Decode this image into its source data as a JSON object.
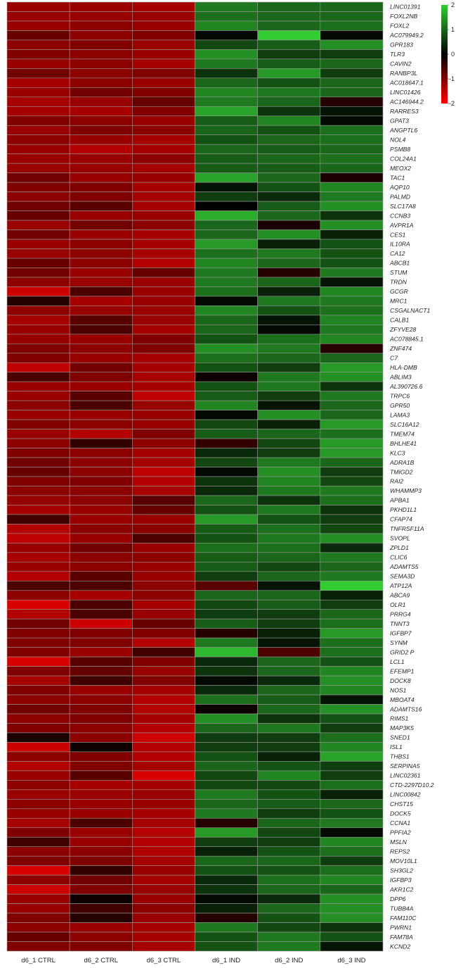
{
  "chart_data": {
    "type": "heatmap",
    "columns": [
      "d6_1 CTRL",
      "d6_2 CTRL",
      "d6_3 CTRL",
      "d6_1 IND",
      "d6_2 IND",
      "d6_3 IND"
    ],
    "rows": [
      "LINC01391",
      "FOXL2NB",
      "FOXL2",
      "AC079949.2",
      "GPR183",
      "TLR3",
      "CAVIN2",
      "RANBP3L",
      "AC018647.1",
      "LINC01426",
      "AC146944.2",
      "RARRES3",
      "GPAT3",
      "ANGPTL6",
      "NOL4",
      "PSMB8",
      "COL24A1",
      "MEOX2",
      "TAC1",
      "AQP10",
      "PALMD",
      "SLC17A8",
      "CCNB3",
      "AVPR1A",
      "CES1",
      "IL10RA",
      "CA12",
      "ABCB1",
      "STUM",
      "TRDN",
      "GCGR",
      "MRC1",
      "CSGALNACT1",
      "CALB1",
      "ZFYVE28",
      "AC078845.1",
      "ZNF474",
      "C7",
      "HLA-DMB",
      "ABLIM3",
      "AL390726.6",
      "TRPC6",
      "GPR50",
      "LAMA3",
      "SLC16A12",
      "TMEM74",
      "BHLHE41",
      "KLC3",
      "ADRA1B",
      "TMIGD2",
      "RAI2",
      "WHAMMP3",
      "APBA1",
      "PKHD1L1",
      "CFAP74",
      "TNFRSF11A",
      "SVOPL",
      "ZPLD1",
      "CLIC6",
      "ADAMTS5",
      "SEMA3D",
      "ATP12A",
      "ABCA9",
      "OLR1",
      "PRRG4",
      "TNNT3",
      "IGFBP7",
      "SYNM",
      "GRID2 P",
      "LCL1",
      "EFEMP1",
      "DOCK8",
      "NOS1",
      "MBOAT4",
      "ADAMTS16",
      "RIMS1",
      "MAP3K5",
      "SNED1",
      "ISL1",
      "THBS1",
      "SERPINA5",
      "LINC02361",
      "CTD-2297D10.2",
      "LINC00842",
      "CHST15",
      "DOCK5",
      "CCNA1",
      "PPFIA2",
      "MSLN",
      "REPS2",
      "MOV10L1",
      "SH3GL2",
      "IGFBP3",
      "AKR1C2",
      "DPP6",
      "TUBB4A",
      "FAM110C",
      "PWRN1",
      "FAM78A",
      "KCND2"
    ],
    "values": [
      [
        -1.2,
        -1.2,
        -1.3,
        1.2,
        1.0,
        1.0
      ],
      [
        -1.2,
        -1.2,
        -1.2,
        1.1,
        1.0,
        1.0
      ],
      [
        -1.2,
        -1.1,
        -1.2,
        1.3,
        1.0,
        1.1
      ],
      [
        -0.8,
        -1.1,
        -1.0,
        0.1,
        2.0,
        0.1
      ],
      [
        -1.1,
        -1.0,
        -1.2,
        0.7,
        0.9,
        1.4
      ],
      [
        -1.0,
        -1.1,
        -1.2,
        1.4,
        0.6,
        0.6
      ],
      [
        -1.2,
        -1.1,
        -1.3,
        1.2,
        0.9,
        1.0
      ],
      [
        -0.9,
        -1.1,
        -1.0,
        0.5,
        1.5,
        0.6
      ],
      [
        -1.3,
        -1.1,
        -1.2,
        1.0,
        0.8,
        1.0
      ],
      [
        -1.2,
        -0.9,
        -1.0,
        1.3,
        1.2,
        1.0
      ],
      [
        -1.3,
        -1.2,
        -0.8,
        1.2,
        1.0,
        -0.3
      ],
      [
        -1.3,
        -1.3,
        -1.0,
        1.6,
        0.5,
        0.2
      ],
      [
        -1.0,
        -1.1,
        -1.2,
        0.9,
        1.3,
        0.1
      ],
      [
        -1.2,
        -1.0,
        -1.1,
        1.0,
        0.8,
        1.1
      ],
      [
        -1.1,
        -1.2,
        -1.3,
        0.8,
        1.0,
        1.1
      ],
      [
        -1.2,
        -1.4,
        -1.3,
        1.0,
        0.9,
        1.0
      ],
      [
        -1.2,
        -1.2,
        -1.1,
        0.9,
        1.0,
        1.1
      ],
      [
        -1.2,
        -1.2,
        -1.3,
        0.9,
        0.9,
        1.0
      ],
      [
        -0.9,
        -1.2,
        -1.2,
        1.6,
        1.0,
        -0.2
      ],
      [
        -1.0,
        -1.0,
        -1.3,
        0.2,
        0.8,
        1.3
      ],
      [
        -1.1,
        -1.0,
        -1.3,
        0.6,
        0.4,
        1.2
      ],
      [
        -0.9,
        -0.7,
        -1.3,
        0.0,
        0.9,
        1.4
      ],
      [
        -0.8,
        -1.2,
        -1.2,
        1.7,
        1.0,
        0.5
      ],
      [
        -1.2,
        -0.9,
        -1.1,
        1.0,
        -0.2,
        1.4
      ],
      [
        -0.9,
        -1.2,
        -1.3,
        1.0,
        1.4,
        0.3
      ],
      [
        -1.2,
        -1.1,
        -1.3,
        1.5,
        0.3,
        0.8
      ],
      [
        -1.2,
        -1.1,
        -1.3,
        1.1,
        1.2,
        0.8
      ],
      [
        -0.8,
        -1.1,
        -1.4,
        1.3,
        1.0,
        0.8
      ],
      [
        -0.9,
        -1.2,
        -0.8,
        1.2,
        -0.3,
        1.2
      ],
      [
        -1.1,
        -1.2,
        -1.2,
        1.2,
        1.0,
        0.2
      ],
      [
        -1.6,
        -0.6,
        -1.2,
        1.1,
        0.3,
        1.3
      ],
      [
        -0.3,
        -1.3,
        -1.2,
        0.1,
        1.2,
        1.2
      ],
      [
        -1.1,
        -1.2,
        -1.2,
        1.3,
        0.8,
        1.1
      ],
      [
        -1.3,
        -0.7,
        -1.2,
        1.0,
        0.2,
        1.3
      ],
      [
        -1.2,
        -0.6,
        -1.3,
        1.0,
        0.1,
        1.2
      ],
      [
        -1.2,
        -1.2,
        -1.0,
        0.8,
        1.1,
        1.3
      ],
      [
        -1.0,
        -1.1,
        -1.0,
        1.4,
        1.2,
        -0.3
      ],
      [
        -1.0,
        -1.2,
        -1.3,
        1.1,
        1.0,
        1.0
      ],
      [
        -1.5,
        -0.9,
        -1.3,
        0.8,
        0.6,
        1.5
      ],
      [
        -0.6,
        -1.0,
        -1.3,
        -0.1,
        1.2,
        1.4
      ],
      [
        -1.2,
        -1.2,
        -1.3,
        0.8,
        1.2,
        0.5
      ],
      [
        -1.2,
        -0.7,
        -1.5,
        0.9,
        0.6,
        1.2
      ],
      [
        -1.1,
        -0.6,
        -1.2,
        1.3,
        0.2,
        1.0
      ],
      [
        -1.2,
        -1.2,
        -1.2,
        0.1,
        1.4,
        1.0
      ],
      [
        -1.0,
        -1.1,
        -1.2,
        0.7,
        0.3,
        1.5
      ],
      [
        -1.2,
        -1.4,
        -1.0,
        0.9,
        1.0,
        1.1
      ],
      [
        -1.1,
        -0.4,
        -1.1,
        -0.4,
        0.7,
        1.5
      ],
      [
        -1.0,
        -1.1,
        -1.3,
        0.4,
        0.6,
        1.5
      ],
      [
        -0.9,
        -1.1,
        -1.3,
        0.7,
        1.2,
        1.0
      ],
      [
        -0.8,
        -1.1,
        -1.5,
        0.1,
        1.4,
        0.6
      ],
      [
        -1.0,
        -1.0,
        -1.4,
        0.5,
        1.3,
        0.7
      ],
      [
        -1.1,
        -1.1,
        -1.3,
        0.4,
        1.2,
        1.2
      ],
      [
        -1.2,
        -1.1,
        -0.7,
        1.0,
        0.5,
        1.1
      ],
      [
        -1.3,
        -1.2,
        -0.8,
        0.8,
        1.2,
        0.5
      ],
      [
        -0.5,
        -1.2,
        -1.2,
        1.5,
        0.8,
        0.6
      ],
      [
        -1.4,
        -1.1,
        -1.1,
        0.9,
        1.1,
        0.7
      ],
      [
        -1.5,
        -1.2,
        -0.6,
        0.8,
        1.2,
        1.4
      ],
      [
        -1.2,
        -0.9,
        -1.2,
        1.1,
        1.1,
        0.4
      ],
      [
        -1.3,
        -1.1,
        -1.1,
        0.9,
        1.0,
        1.2
      ],
      [
        -1.2,
        -1.1,
        -1.2,
        0.9,
        0.7,
        1.0
      ],
      [
        -1.4,
        -0.7,
        -1.2,
        0.6,
        1.0,
        1.2
      ],
      [
        -0.6,
        -0.6,
        -1.1,
        -0.7,
        0.2,
        2.0
      ],
      [
        -1.1,
        -1.3,
        -1.1,
        1.0,
        1.0,
        0.3
      ],
      [
        -1.7,
        -0.6,
        -1.3,
        0.7,
        0.9,
        0.6
      ],
      [
        -1.4,
        -0.6,
        -1.2,
        0.6,
        0.6,
        1.0
      ],
      [
        -0.9,
        -1.6,
        -0.8,
        0.9,
        0.6,
        1.1
      ],
      [
        -1.0,
        -1.0,
        -1.0,
        -0.3,
        0.3,
        1.5
      ],
      [
        -1.0,
        -1.0,
        -1.4,
        1.2,
        0.2,
        1.1
      ],
      [
        -1.0,
        -1.2,
        -0.5,
        1.8,
        -0.6,
        1.1
      ],
      [
        -1.7,
        -0.7,
        -1.0,
        0.4,
        1.0,
        0.8
      ],
      [
        -1.0,
        -0.8,
        -1.2,
        0.5,
        1.0,
        1.3
      ],
      [
        -1.3,
        -0.5,
        -1.0,
        0.1,
        0.4,
        1.4
      ],
      [
        -1.0,
        -1.2,
        -1.3,
        0.4,
        1.0,
        1.3
      ],
      [
        -1.1,
        -1.1,
        -1.4,
        1.1,
        0.9,
        0.2
      ],
      [
        -0.9,
        -1.0,
        -1.4,
        -0.1,
        1.0,
        1.4
      ],
      [
        -1.1,
        -1.0,
        -1.3,
        1.4,
        0.5,
        0.8
      ],
      [
        -1.0,
        -1.1,
        -1.4,
        1.0,
        1.2,
        0.6
      ],
      [
        -0.2,
        -1.1,
        -1.6,
        0.6,
        0.6,
        1.1
      ],
      [
        -1.6,
        -0.1,
        -1.4,
        0.6,
        0.6,
        1.3
      ],
      [
        -1.1,
        -1.0,
        -1.4,
        0.8,
        0.3,
        1.6
      ],
      [
        -1.4,
        -1.0,
        -1.3,
        1.0,
        0.8,
        0.6
      ],
      [
        -1.2,
        -0.7,
        -1.7,
        0.7,
        1.3,
        0.6
      ],
      [
        -1.1,
        -1.3,
        -1.3,
        0.7,
        0.7,
        1.1
      ],
      [
        -1.2,
        -1.2,
        -1.2,
        1.2,
        0.8,
        0.3
      ],
      [
        -1.1,
        -1.2,
        -1.2,
        1.0,
        0.9,
        1.0
      ],
      [
        -1.2,
        -1.2,
        -1.3,
        1.2,
        0.6,
        0.8
      ],
      [
        -1.3,
        -0.6,
        -1.3,
        -0.3,
        1.0,
        1.2
      ],
      [
        -1.0,
        -1.2,
        -1.4,
        1.5,
        0.7,
        0.1
      ],
      [
        -0.5,
        -1.2,
        -1.4,
        0.6,
        0.6,
        1.3
      ],
      [
        -1.1,
        -1.1,
        -1.4,
        0.3,
        0.8,
        1.1
      ],
      [
        -1.0,
        -1.0,
        -1.3,
        1.0,
        1.0,
        0.6
      ],
      [
        -1.7,
        -0.4,
        -1.2,
        0.8,
        0.8,
        1.1
      ],
      [
        -1.1,
        -0.9,
        -1.3,
        0.4,
        1.1,
        1.3
      ],
      [
        -1.6,
        -1.0,
        -1.2,
        0.5,
        1.0,
        1.0
      ],
      [
        -1.2,
        -0.1,
        -1.2,
        0.1,
        0.4,
        1.4
      ],
      [
        -1.2,
        -0.5,
        -1.1,
        0.3,
        1.0,
        1.4
      ],
      [
        -1.0,
        -0.3,
        -1.2,
        -0.3,
        0.8,
        1.4
      ],
      [
        -1.1,
        -1.2,
        -1.3,
        1.2,
        0.7,
        0.5
      ],
      [
        -0.8,
        -1.1,
        -1.3,
        0.8,
        1.2,
        0.8
      ],
      [
        -1.0,
        -1.0,
        -1.3,
        0.8,
        1.2,
        0.2
      ]
    ],
    "color_scale": {
      "min": -2,
      "max": 2,
      "low_color": "#ff0000",
      "mid_color": "#000000",
      "high_color": "#33cc33"
    },
    "legend_ticks": [
      "2",
      "1",
      "0",
      "-1",
      "-2"
    ],
    "legend_placement": "top-right",
    "grid": true
  }
}
